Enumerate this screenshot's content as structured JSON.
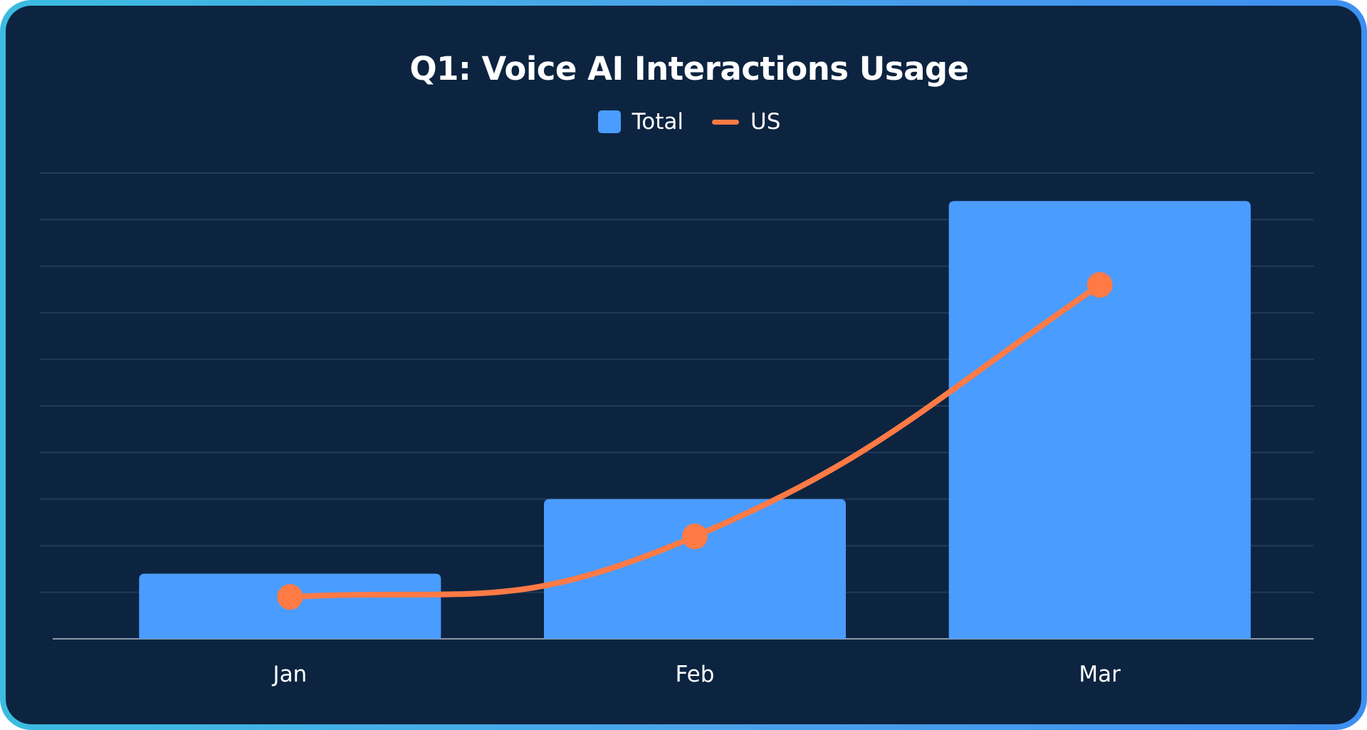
{
  "chart_data": {
    "type": "bar",
    "title": "Q1: Voice AI Interactions Usage",
    "categories": [
      "Jan",
      "Feb",
      "Mar"
    ],
    "series": [
      {
        "name": "Total",
        "kind": "bar",
        "color": "#4a9cff",
        "values": [
          1.4,
          3.0,
          9.4
        ]
      },
      {
        "name": "US",
        "kind": "line",
        "color": "#ff7a45",
        "values": [
          0.9,
          2.2,
          7.6
        ]
      }
    ],
    "xlabel": "",
    "ylabel": "",
    "ylim": [
      0,
      10
    ],
    "gridlines": 10,
    "grid": true,
    "legend_position": "top-center"
  }
}
